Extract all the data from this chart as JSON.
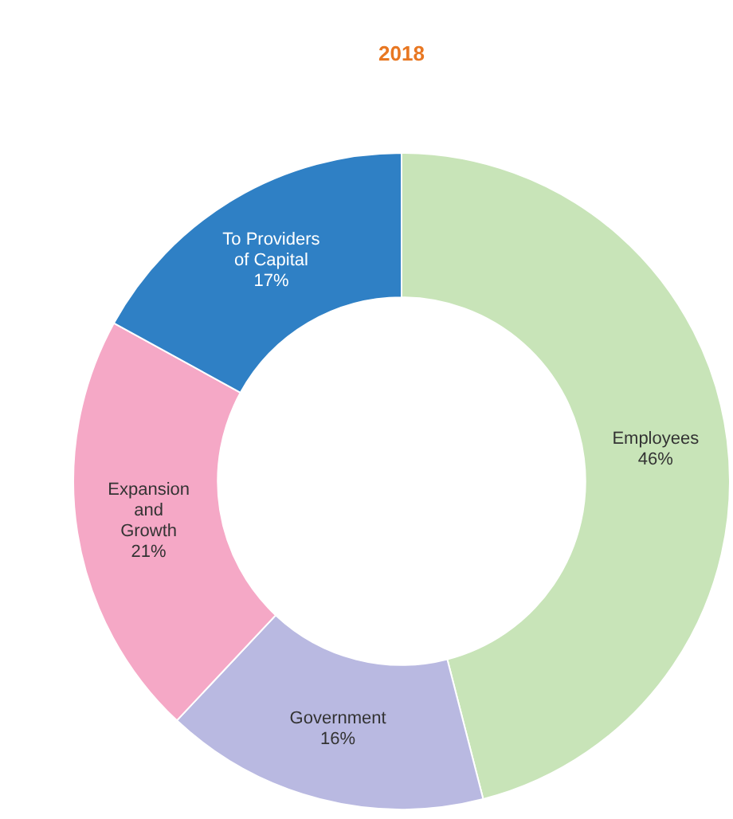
{
  "chart_data": {
    "type": "donut",
    "title": "2018",
    "categories": [
      "Employees",
      "Government",
      "Expansion\nand\nGrowth",
      "To Providers\nof Capital"
    ],
    "values": [
      46,
      16,
      21,
      17
    ],
    "colors": [
      "#c8e4b8",
      "#b9b9e1",
      "#f5a8c6",
      "#2f80c5"
    ],
    "value_labels": [
      "46%",
      "16%",
      "21%",
      "17%"
    ]
  }
}
